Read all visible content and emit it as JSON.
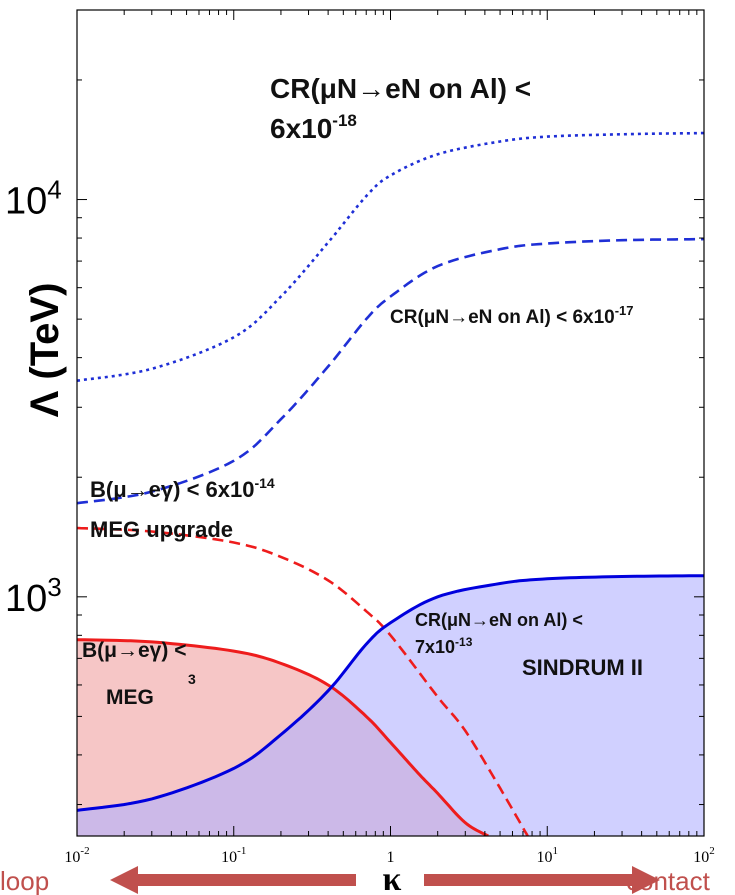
{
  "chart_data": {
    "type": "line",
    "xscale": "log",
    "yscale": "log",
    "xlim": [
      0.01,
      100
    ],
    "ylim": [
      250,
      30000
    ],
    "xlabel": "κ",
    "ylabel": "Λ (TeV)",
    "x_ticks": [
      {
        "value": 0.01,
        "base": "10",
        "exp": "-2"
      },
      {
        "value": 0.1,
        "base": "10",
        "exp": "-1"
      },
      {
        "value": 1,
        "base": "1",
        "exp": ""
      },
      {
        "value": 10,
        "base": "10",
        "exp": "1"
      },
      {
        "value": 100,
        "base": "10",
        "exp": "2"
      }
    ],
    "y_ticks": [
      {
        "value": 1000,
        "base": "10",
        "exp": "3"
      },
      {
        "value": 10000,
        "base": "10",
        "exp": "4"
      }
    ],
    "bottom_labels": {
      "left": "loop",
      "right": "contact"
    },
    "series": [
      {
        "id": "meg",
        "style": "solid",
        "color": "#ee1c1c",
        "fill": "#f0a0a0",
        "x": [
          0.01,
          0.03,
          0.1,
          0.2,
          0.4,
          0.7,
          1,
          1.5,
          2,
          3,
          4.2
        ],
        "y": [
          780,
          770,
          730,
          680,
          600,
          500,
          430,
          360,
          320,
          270,
          250
        ]
      },
      {
        "id": "meg-upgrade",
        "style": "dashed",
        "color": "#ee1c1c",
        "x": [
          0.01,
          0.03,
          0.1,
          0.2,
          0.4,
          0.7,
          1,
          2,
          3,
          5,
          7.5
        ],
        "y": [
          1490,
          1460,
          1370,
          1260,
          1100,
          920,
          800,
          560,
          460,
          330,
          250
        ]
      },
      {
        "id": "sindrum-ii",
        "style": "solid",
        "color": "#0000dd",
        "fill": "#b0b0ff",
        "x": [
          0.01,
          0.03,
          0.1,
          0.2,
          0.4,
          0.7,
          1,
          2,
          5,
          10,
          30,
          100
        ],
        "y": [
          290,
          310,
          370,
          450,
          580,
          760,
          860,
          1000,
          1080,
          1110,
          1125,
          1130
        ]
      },
      {
        "id": "cr-6e-17",
        "style": "dashed",
        "color": "#1f2fd6",
        "x": [
          0.01,
          0.03,
          0.1,
          0.2,
          0.4,
          0.7,
          1,
          2,
          5,
          10,
          30,
          100
        ],
        "y": [
          1720,
          1840,
          2200,
          2800,
          3800,
          5000,
          5700,
          6800,
          7500,
          7750,
          7900,
          7950
        ]
      },
      {
        "id": "cr-6e-18",
        "style": "dotted",
        "color": "#1f2fd6",
        "x": [
          0.01,
          0.03,
          0.1,
          0.2,
          0.4,
          0.7,
          1,
          2,
          5,
          10,
          30,
          100
        ],
        "y": [
          3500,
          3750,
          4500,
          5700,
          7800,
          10200,
          11500,
          13000,
          14000,
          14400,
          14600,
          14700
        ]
      }
    ],
    "annotations": {
      "cr18": {
        "line1": "CR(μN→eN on Al) <",
        "base": "6x10",
        "exp": "-18"
      },
      "cr17": {
        "base": "CR(μN→eN on Al) < 6x10",
        "exp": "-17"
      },
      "megup": {
        "base": "B(μ→eγ) < 6x10",
        "exp": "-14",
        "line2": "MEG upgrade"
      },
      "meg": {
        "line1": "B(μ→eγ) <",
        "exp": "3",
        "line2": "MEG"
      },
      "sindrum": {
        "line1": "CR(μN→eN on Al) <",
        "base": "7x10",
        "exp": "-13",
        "line2": "SINDRUM II"
      }
    }
  }
}
